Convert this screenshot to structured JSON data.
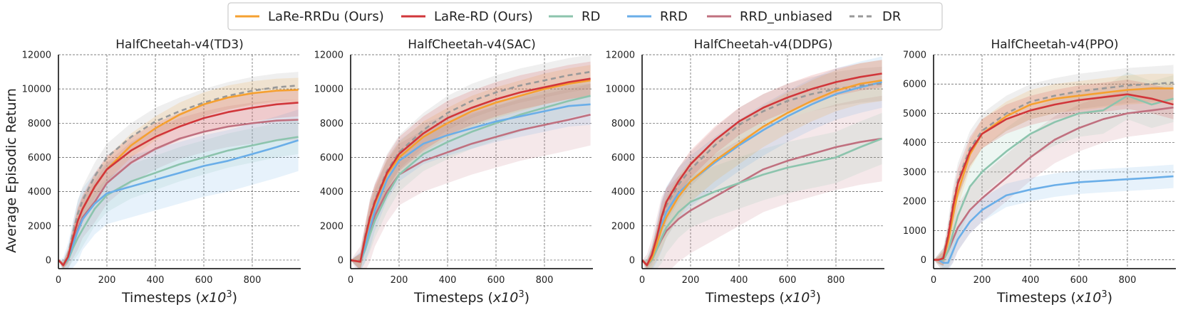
{
  "legend": {
    "placement": "top-center",
    "entries": [
      {
        "name": "LaRe-RRDu (Ours)",
        "color": "#f5a030",
        "style": "solid"
      },
      {
        "name": "LaRe-RD (Ours)",
        "color": "#d1363a",
        "style": "solid"
      },
      {
        "name": "RD",
        "color": "#8cc4ad",
        "style": "solid"
      },
      {
        "name": "RRD",
        "color": "#6aaee8",
        "style": "solid"
      },
      {
        "name": "RRD_unbiased",
        "color": "#c0707f",
        "style": "solid"
      },
      {
        "name": "DR",
        "color": "#999999",
        "style": "dashed"
      }
    ]
  },
  "shared": {
    "xlabel_prefix": "Timesteps (",
    "xlabel_var": "x10",
    "xlabel_exp": "3",
    "xlabel_suffix": ")",
    "ylabel": "Average Episodic Return"
  },
  "chart_data": [
    {
      "type": "line",
      "title": "HalfCheetah-v4(TD3)",
      "xlim": [
        0,
        1000
      ],
      "ylim": [
        -500,
        12000
      ],
      "yticks": [
        0,
        2000,
        4000,
        6000,
        8000,
        10000,
        12000
      ],
      "xticks": [
        0,
        200,
        400,
        600,
        800
      ],
      "x": [
        0,
        20,
        40,
        60,
        80,
        100,
        150,
        200,
        300,
        400,
        500,
        600,
        700,
        800,
        900,
        990
      ],
      "series": [
        {
          "name": "LaRe-RRDu (Ours)",
          "values": [
            0,
            -300,
            200,
            1300,
            2300,
            3000,
            4300,
            5300,
            6700,
            7700,
            8500,
            9100,
            9500,
            9750,
            9900,
            9950
          ],
          "band": 700
        },
        {
          "name": "LaRe-RD (Ours)",
          "values": [
            0,
            -300,
            200,
            1300,
            2300,
            3000,
            4300,
            5300,
            6400,
            7200,
            7800,
            8300,
            8650,
            8900,
            9100,
            9200
          ],
          "band": 800
        },
        {
          "name": "RD",
          "values": [
            0,
            -300,
            0,
            700,
            1300,
            1800,
            3000,
            3800,
            4600,
            5100,
            5600,
            6000,
            6400,
            6700,
            7000,
            7200
          ],
          "band": 1000
        },
        {
          "name": "RRD",
          "values": [
            0,
            -300,
            100,
            900,
            1700,
            2400,
            3300,
            3900,
            4300,
            4700,
            5100,
            5500,
            5800,
            6200,
            6600,
            7000
          ],
          "band": 1800
        },
        {
          "name": "RRD_unbiased",
          "values": [
            0,
            -300,
            100,
            1000,
            1800,
            2500,
            3400,
            4500,
            5700,
            6500,
            7100,
            7500,
            7800,
            8000,
            8150,
            8200
          ],
          "band": 1200
        },
        {
          "name": "DR",
          "values": [
            0,
            -300,
            300,
            1600,
            2700,
            3500,
            4900,
            6000,
            7200,
            8100,
            8700,
            9200,
            9600,
            9900,
            10100,
            10200
          ],
          "band": 800
        }
      ]
    },
    {
      "type": "line",
      "title": "HalfCheetah-v4(SAC)",
      "xlim": [
        0,
        1000
      ],
      "ylim": [
        -500,
        12000
      ],
      "yticks": [
        0,
        2000,
        4000,
        6000,
        8000,
        10000,
        12000
      ],
      "xticks": [
        0,
        200,
        400,
        600,
        800
      ],
      "x": [
        0,
        20,
        40,
        60,
        80,
        100,
        150,
        200,
        300,
        400,
        500,
        600,
        700,
        800,
        900,
        990
      ],
      "series": [
        {
          "name": "LaRe-RRDu (Ours)",
          "values": [
            0,
            -50,
            -100,
            1200,
            2400,
            3300,
            5000,
            6000,
            7200,
            8000,
            8700,
            9200,
            9600,
            10000,
            10300,
            10500
          ],
          "band": 900
        },
        {
          "name": "LaRe-RD (Ours)",
          "values": [
            0,
            -50,
            -100,
            1300,
            2500,
            3400,
            5100,
            6200,
            7400,
            8300,
            8900,
            9400,
            9800,
            10100,
            10400,
            10600
          ],
          "band": 1000
        },
        {
          "name": "RD",
          "values": [
            0,
            -50,
            -100,
            600,
            1500,
            2300,
            3800,
            5000,
            6200,
            6900,
            7500,
            8000,
            8500,
            8900,
            9300,
            9600
          ],
          "band": 1000
        },
        {
          "name": "RRD",
          "values": [
            0,
            -50,
            -100,
            800,
            1900,
            2900,
            4700,
            5800,
            6800,
            7300,
            7700,
            8100,
            8400,
            8700,
            9000,
            9100
          ],
          "band": 1200
        },
        {
          "name": "RRD_unbiased",
          "values": [
            0,
            -50,
            -100,
            700,
            1700,
            2600,
            4000,
            5000,
            5800,
            6300,
            6800,
            7200,
            7600,
            7900,
            8200,
            8500
          ],
          "band": 1800
        },
        {
          "name": "DR",
          "values": [
            0,
            -50,
            -100,
            1400,
            2600,
            3500,
            5200,
            6300,
            7600,
            8600,
            9300,
            9800,
            10200,
            10500,
            10800,
            11000
          ],
          "band": 1000
        }
      ]
    },
    {
      "type": "line",
      "title": "HalfCheetah-v4(DDPG)",
      "xlim": [
        0,
        1000
      ],
      "ylim": [
        -500,
        12000
      ],
      "yticks": [
        0,
        2000,
        4000,
        6000,
        8000,
        10000,
        12000
      ],
      "xticks": [
        0,
        200,
        400,
        600,
        800
      ],
      "x": [
        0,
        20,
        40,
        60,
        80,
        100,
        150,
        200,
        300,
        400,
        500,
        600,
        700,
        800,
        900,
        990
      ],
      "series": [
        {
          "name": "LaRe-RRDu (Ours)",
          "values": [
            0,
            -300,
            100,
            900,
            1800,
            2500,
            3700,
            4600,
            5800,
            6800,
            7800,
            8600,
            9300,
            9900,
            10300,
            10500
          ],
          "band": 1200
        },
        {
          "name": "LaRe-RD (Ours)",
          "values": [
            0,
            -300,
            300,
            1300,
            2500,
            3400,
            4600,
            5600,
            7000,
            8100,
            8900,
            9500,
            10000,
            10400,
            10700,
            10900
          ],
          "band": 800
        },
        {
          "name": "RD",
          "values": [
            0,
            -300,
            0,
            600,
            1300,
            1900,
            2800,
            3400,
            4000,
            4500,
            5000,
            5400,
            5700,
            6000,
            6600,
            7100
          ],
          "band": 1500
        },
        {
          "name": "RRD",
          "values": [
            0,
            -300,
            100,
            1000,
            2000,
            2800,
            3900,
            4600,
            5700,
            6700,
            7600,
            8400,
            9100,
            9700,
            10100,
            10400
          ],
          "band": 1500
        },
        {
          "name": "RRD_unbiased",
          "values": [
            0,
            -300,
            0,
            600,
            1200,
            1700,
            2400,
            2900,
            3700,
            4500,
            5300,
            5800,
            6200,
            6600,
            6900,
            7100
          ],
          "band": 2500
        },
        {
          "name": "DR",
          "values": [
            0,
            -300,
            200,
            1200,
            2400,
            3200,
            4400,
            5300,
            6700,
            7900,
            8700,
            9300,
            9700,
            10000,
            10200,
            10300
          ],
          "band": 1000
        }
      ]
    },
    {
      "type": "line",
      "title": "HalfCheetah-v4(PPO)",
      "xlim": [
        0,
        1000
      ],
      "ylim": [
        -300,
        7000
      ],
      "yticks": [
        0,
        1000,
        2000,
        3000,
        4000,
        5000,
        6000,
        7000
      ],
      "xticks": [
        0,
        200,
        400,
        600,
        800
      ],
      "x": [
        0,
        20,
        40,
        60,
        80,
        100,
        150,
        200,
        300,
        400,
        500,
        600,
        700,
        800,
        900,
        990
      ],
      "series": [
        {
          "name": "LaRe-RRDu (Ours)",
          "values": [
            0,
            0,
            50,
            600,
            1500,
            2300,
            3600,
            4300,
            4900,
            5300,
            5500,
            5600,
            5700,
            5800,
            5850,
            5850
          ],
          "band": 500
        },
        {
          "name": "LaRe-RD (Ours)",
          "values": [
            0,
            0,
            50,
            800,
            1800,
            2600,
            3700,
            4300,
            4800,
            5100,
            5300,
            5450,
            5550,
            5650,
            5500,
            5300
          ],
          "band": 500
        },
        {
          "name": "RD",
          "values": [
            0,
            0,
            0,
            300,
            900,
            1500,
            2500,
            3000,
            3700,
            4300,
            4700,
            5000,
            5100,
            5600,
            5300,
            5500
          ],
          "band": 800
        },
        {
          "name": "RRD",
          "values": [
            0,
            0,
            -100,
            -100,
            300,
            700,
            1300,
            1700,
            2200,
            2400,
            2550,
            2650,
            2700,
            2750,
            2800,
            2850
          ],
          "band": 400
        },
        {
          "name": "RRD_unbiased",
          "values": [
            0,
            0,
            0,
            300,
            700,
            1100,
            1700,
            2100,
            2800,
            3500,
            4100,
            4500,
            4800,
            5000,
            5100,
            5200
          ],
          "band": 800
        },
        {
          "name": "DR",
          "values": [
            0,
            0,
            100,
            900,
            1900,
            2700,
            3800,
            4400,
            5000,
            5400,
            5600,
            5750,
            5850,
            5950,
            6000,
            6050
          ],
          "band": 600
        }
      ]
    }
  ]
}
